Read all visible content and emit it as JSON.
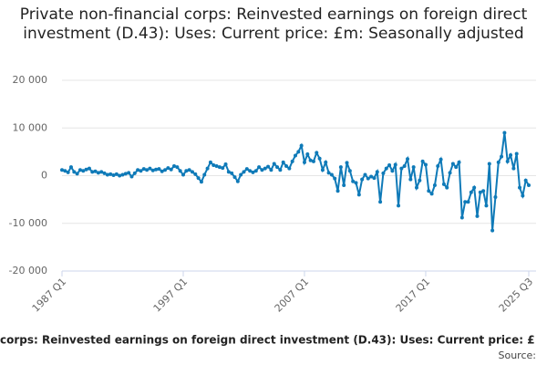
{
  "chart_data": {
    "type": "line",
    "title": "Private non-financial corps: Reinvested earnings on foreign direct investment (D.43): Uses: Current price: £m: Seasonally adjusted",
    "caption": "corps: Reinvested earnings on foreign direct investment (D.43): Uses: Current price: £",
    "source": "Source:",
    "categories": [
      "1987 Q1",
      null,
      null,
      null,
      null,
      null,
      null,
      null,
      null,
      null,
      null,
      null,
      null,
      null,
      null,
      null,
      null,
      null,
      null,
      null,
      null,
      null,
      null,
      null,
      null,
      null,
      null,
      null,
      null,
      null,
      null,
      null,
      null,
      null,
      null,
      null,
      null,
      null,
      null,
      null,
      "1997 Q1",
      null,
      null,
      null,
      null,
      null,
      null,
      null,
      null,
      null,
      null,
      null,
      null,
      null,
      null,
      null,
      null,
      null,
      null,
      null,
      null,
      null,
      null,
      null,
      null,
      null,
      null,
      null,
      null,
      null,
      null,
      null,
      null,
      null,
      null,
      null,
      null,
      null,
      null,
      null,
      "2007 Q1",
      null,
      null,
      null,
      null,
      null,
      null,
      null,
      null,
      null,
      null,
      null,
      null,
      null,
      null,
      null,
      null,
      null,
      null,
      null,
      null,
      null,
      null,
      null,
      null,
      null,
      null,
      null,
      null,
      null,
      null,
      null,
      null,
      null,
      null,
      null,
      null,
      null,
      null,
      null,
      "2017 Q1",
      null,
      null,
      null,
      null,
      null,
      null,
      null,
      null,
      null,
      null,
      null,
      null,
      null,
      null,
      null,
      null,
      null,
      null,
      null,
      null,
      null,
      null,
      null,
      null,
      null,
      null,
      null,
      null,
      null,
      null,
      null,
      null,
      null,
      "2025 Q3"
    ],
    "series": [
      {
        "color": "#0f7ab8",
        "values": [
          1200,
          1000,
          700,
          1800,
          800,
          400,
          1200,
          1000,
          1300,
          1500,
          800,
          900,
          600,
          800,
          500,
          200,
          300,
          100,
          300,
          0,
          200,
          400,
          600,
          -200,
          500,
          1200,
          1000,
          1400,
          1200,
          1500,
          1100,
          1300,
          1400,
          900,
          1200,
          1600,
          1300,
          2000,
          1800,
          1000,
          200,
          1000,
          1200,
          800,
          300,
          -500,
          -1300,
          200,
          1500,
          2800,
          2200,
          2000,
          1800,
          1600,
          2400,
          800,
          500,
          -300,
          -1200,
          200,
          800,
          1400,
          1000,
          700,
          1000,
          1800,
          1200,
          1500,
          1900,
          1200,
          2500,
          1800,
          1200,
          2800,
          2000,
          1500,
          3000,
          4200,
          5000,
          6300,
          2800,
          4500,
          3200,
          3000,
          4800,
          3600,
          1200,
          2800,
          600,
          200,
          -600,
          -3200,
          1800,
          -2000,
          2700,
          1000,
          -1200,
          -1500,
          -4000,
          -800,
          200,
          -600,
          -200,
          -500,
          800,
          -5500,
          500,
          1500,
          2200,
          1000,
          2300,
          -6300,
          1500,
          2000,
          3500,
          -800,
          1800,
          -2500,
          -1000,
          3000,
          2300,
          -3200,
          -3800,
          -2000,
          2000,
          3400,
          -1800,
          -2500,
          600,
          2500,
          1800,
          2800,
          -8800,
          -5500,
          -5500,
          -3500,
          -2500,
          -8500,
          -3500,
          -3200,
          -6300,
          2500,
          -11500,
          -4500,
          2800,
          4000,
          9000,
          3000,
          4300,
          1500,
          4600,
          -2500,
          -4200,
          -1000,
          -2000
        ]
      }
    ],
    "ylim": [
      -20000,
      20000
    ],
    "yticks": [
      {
        "value": -20000,
        "label": "-20 000"
      },
      {
        "value": -10000,
        "label": "-10 000"
      },
      0,
      {
        "value": 10000,
        "label": "10 000"
      },
      {
        "value": 20000,
        "label": "20 000"
      }
    ],
    "grid": true
  }
}
